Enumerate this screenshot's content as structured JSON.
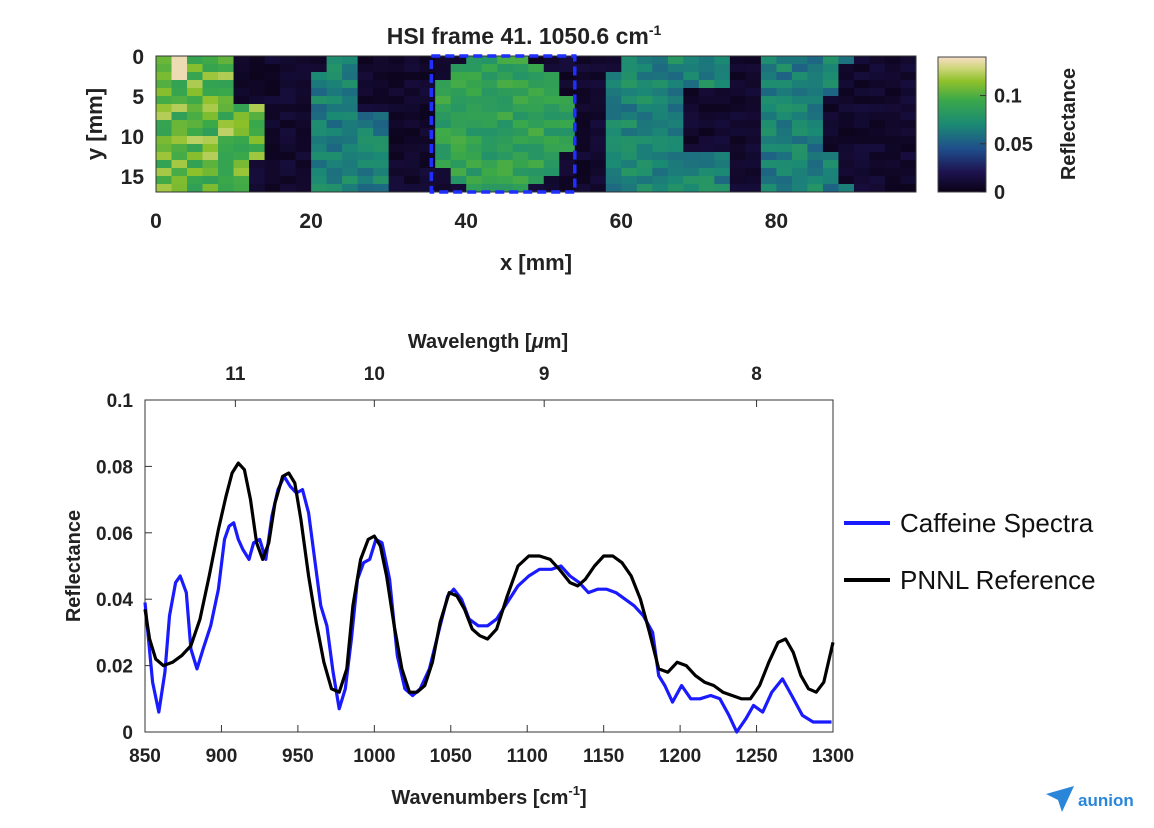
{
  "chart_data": [
    {
      "type": "heatmap",
      "title_main": "HSI frame 41. 1050.6 cm",
      "title_sup": "-1",
      "xlabel": "x [mm]",
      "ylabel": "y [mm]",
      "xlim": [
        0,
        98
      ],
      "ylim": [
        0,
        17
      ],
      "x_ticks": [
        "0",
        "20",
        "40",
        "60",
        "80"
      ],
      "x_tick_values": [
        0,
        20,
        40,
        60,
        80
      ],
      "y_ticks": [
        "0",
        "5",
        "10",
        "15"
      ],
      "y_tick_values": [
        0,
        5,
        10,
        15
      ],
      "colorbar": {
        "label": "Reflectance",
        "range": [
          0,
          0.14
        ],
        "ticks": [
          "0",
          "0.05",
          "0.1"
        ],
        "tick_values": [
          0,
          0.05,
          0.1
        ]
      },
      "highlight_box_x": [
        35.5,
        54
      ],
      "highlight_box_y": [
        0,
        17
      ],
      "highlight_color": "#1f2fff"
    },
    {
      "type": "line",
      "top_axis_label": "Wavelength [",
      "top_axis_mu": "μ",
      "top_axis_label_end": "m]",
      "top_ticks": [
        "11",
        "10",
        "9",
        "8"
      ],
      "top_tick_wavenumbers": [
        909.1,
        1000,
        1111.1,
        1250
      ],
      "xlabel": "Wavenumbers [cm",
      "xlabel_sup": "-1",
      "xlabel_end": "]",
      "ylabel": "Reflectance",
      "xlim": [
        850,
        1300
      ],
      "ylim": [
        0,
        0.1
      ],
      "x_ticks": [
        "850",
        "900",
        "950",
        "1000",
        "1050",
        "1100",
        "1150",
        "1200",
        "1250",
        "1300"
      ],
      "x_tick_values": [
        850,
        900,
        950,
        1000,
        1050,
        1100,
        1150,
        1200,
        1250,
        1300
      ],
      "y_ticks": [
        "0",
        "0.02",
        "0.04",
        "0.06",
        "0.08",
        "0.1"
      ],
      "y_tick_values": [
        0,
        0.02,
        0.04,
        0.06,
        0.08,
        0.1
      ],
      "grid": false,
      "legend_position": "right",
      "series": [
        {
          "name": "Caffeine Spectra",
          "color": "#1a1aff",
          "points": [
            [
              850,
              0.039
            ],
            [
              855,
              0.015
            ],
            [
              859,
              0.006
            ],
            [
              863,
              0.018
            ],
            [
              866,
              0.035
            ],
            [
              870,
              0.045
            ],
            [
              873,
              0.047
            ],
            [
              877,
              0.042
            ],
            [
              880,
              0.025
            ],
            [
              884,
              0.019
            ],
            [
              888,
              0.025
            ],
            [
              893,
              0.032
            ],
            [
              898,
              0.043
            ],
            [
              902,
              0.058
            ],
            [
              905,
              0.062
            ],
            [
              908,
              0.063
            ],
            [
              911,
              0.058
            ],
            [
              914,
              0.055
            ],
            [
              918,
              0.052
            ],
            [
              921,
              0.057
            ],
            [
              925,
              0.058
            ],
            [
              929,
              0.052
            ],
            [
              933,
              0.065
            ],
            [
              937,
              0.073
            ],
            [
              941,
              0.077
            ],
            [
              945,
              0.074
            ],
            [
              949,
              0.072
            ],
            [
              953,
              0.073
            ],
            [
              957,
              0.066
            ],
            [
              961,
              0.052
            ],
            [
              965,
              0.038
            ],
            [
              969,
              0.032
            ],
            [
              973,
              0.018
            ],
            [
              977,
              0.007
            ],
            [
              981,
              0.013
            ],
            [
              985,
              0.028
            ],
            [
              989,
              0.046
            ],
            [
              993,
              0.051
            ],
            [
              997,
              0.052
            ],
            [
              1001,
              0.058
            ],
            [
              1005,
              0.057
            ],
            [
              1010,
              0.046
            ],
            [
              1015,
              0.023
            ],
            [
              1020,
              0.013
            ],
            [
              1025,
              0.011
            ],
            [
              1030,
              0.013
            ],
            [
              1036,
              0.019
            ],
            [
              1042,
              0.03
            ],
            [
              1048,
              0.041
            ],
            [
              1052,
              0.043
            ],
            [
              1057,
              0.04
            ],
            [
              1062,
              0.034
            ],
            [
              1068,
              0.032
            ],
            [
              1074,
              0.032
            ],
            [
              1080,
              0.034
            ],
            [
              1087,
              0.039
            ],
            [
              1094,
              0.044
            ],
            [
              1101,
              0.047
            ],
            [
              1108,
              0.049
            ],
            [
              1116,
              0.049
            ],
            [
              1122,
              0.05
            ],
            [
              1128,
              0.047
            ],
            [
              1134,
              0.045
            ],
            [
              1140,
              0.042
            ],
            [
              1146,
              0.043
            ],
            [
              1152,
              0.043
            ],
            [
              1158,
              0.042
            ],
            [
              1164,
              0.04
            ],
            [
              1170,
              0.038
            ],
            [
              1176,
              0.035
            ],
            [
              1182,
              0.03
            ],
            [
              1186,
              0.017
            ],
            [
              1190,
              0.014
            ],
            [
              1195,
              0.009
            ],
            [
              1201,
              0.014
            ],
            [
              1207,
              0.01
            ],
            [
              1213,
              0.01
            ],
            [
              1220,
              0.011
            ],
            [
              1226,
              0.01
            ],
            [
              1232,
              0.005
            ],
            [
              1237,
              0.0
            ],
            [
              1243,
              0.004
            ],
            [
              1248,
              0.008
            ],
            [
              1254,
              0.006
            ],
            [
              1260,
              0.012
            ],
            [
              1267,
              0.016
            ],
            [
              1273,
              0.011
            ],
            [
              1280,
              0.005
            ],
            [
              1287,
              0.003
            ],
            [
              1294,
              0.003
            ],
            [
              1299,
              0.003
            ]
          ]
        },
        {
          "name": "PNNL Reference",
          "color": "#000000",
          "points": [
            [
              850,
              0.037
            ],
            [
              853,
              0.028
            ],
            [
              857,
              0.022
            ],
            [
              862,
              0.02
            ],
            [
              868,
              0.021
            ],
            [
              874,
              0.023
            ],
            [
              880,
              0.026
            ],
            [
              886,
              0.034
            ],
            [
              892,
              0.047
            ],
            [
              898,
              0.061
            ],
            [
              903,
              0.071
            ],
            [
              907,
              0.078
            ],
            [
              911,
              0.081
            ],
            [
              915,
              0.079
            ],
            [
              919,
              0.07
            ],
            [
              923,
              0.057
            ],
            [
              927,
              0.052
            ],
            [
              931,
              0.057
            ],
            [
              935,
              0.069
            ],
            [
              940,
              0.077
            ],
            [
              944,
              0.078
            ],
            [
              948,
              0.075
            ],
            [
              952,
              0.064
            ],
            [
              957,
              0.047
            ],
            [
              962,
              0.033
            ],
            [
              967,
              0.021
            ],
            [
              972,
              0.013
            ],
            [
              977,
              0.012
            ],
            [
              982,
              0.019
            ],
            [
              986,
              0.038
            ],
            [
              991,
              0.052
            ],
            [
              996,
              0.058
            ],
            [
              1000,
              0.059
            ],
            [
              1004,
              0.056
            ],
            [
              1008,
              0.047
            ],
            [
              1013,
              0.032
            ],
            [
              1018,
              0.019
            ],
            [
              1023,
              0.012
            ],
            [
              1028,
              0.012
            ],
            [
              1033,
              0.014
            ],
            [
              1038,
              0.021
            ],
            [
              1043,
              0.033
            ],
            [
              1049,
              0.042
            ],
            [
              1054,
              0.041
            ],
            [
              1059,
              0.037
            ],
            [
              1064,
              0.031
            ],
            [
              1069,
              0.029
            ],
            [
              1074,
              0.028
            ],
            [
              1080,
              0.031
            ],
            [
              1087,
              0.041
            ],
            [
              1094,
              0.05
            ],
            [
              1101,
              0.053
            ],
            [
              1108,
              0.053
            ],
            [
              1115,
              0.052
            ],
            [
              1121,
              0.049
            ],
            [
              1128,
              0.045
            ],
            [
              1133,
              0.044
            ],
            [
              1138,
              0.046
            ],
            [
              1144,
              0.05
            ],
            [
              1150,
              0.053
            ],
            [
              1156,
              0.053
            ],
            [
              1162,
              0.051
            ],
            [
              1168,
              0.047
            ],
            [
              1174,
              0.04
            ],
            [
              1180,
              0.03
            ],
            [
              1186,
              0.019
            ],
            [
              1192,
              0.018
            ],
            [
              1198,
              0.021
            ],
            [
              1204,
              0.02
            ],
            [
              1210,
              0.017
            ],
            [
              1216,
              0.015
            ],
            [
              1222,
              0.014
            ],
            [
              1228,
              0.012
            ],
            [
              1234,
              0.011
            ],
            [
              1240,
              0.01
            ],
            [
              1246,
              0.01
            ],
            [
              1252,
              0.014
            ],
            [
              1258,
              0.021
            ],
            [
              1264,
              0.027
            ],
            [
              1269,
              0.028
            ],
            [
              1274,
              0.024
            ],
            [
              1279,
              0.017
            ],
            [
              1284,
              0.013
            ],
            [
              1289,
              0.012
            ],
            [
              1294,
              0.015
            ],
            [
              1300,
              0.027
            ]
          ]
        }
      ]
    }
  ],
  "watermark": {
    "text": "aunion"
  }
}
